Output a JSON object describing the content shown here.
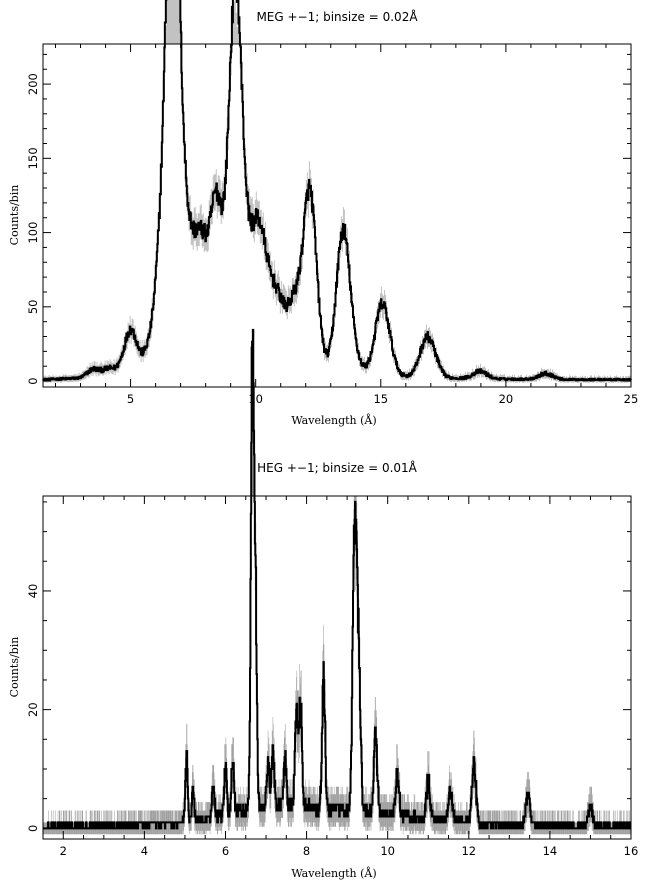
{
  "chart_data": [
    {
      "type": "line",
      "title": "MEG +−1; binsize = 0.02Å",
      "xlabel": "Wavelength (Å)",
      "ylabel": "Counts/bin",
      "xlim": [
        1.5,
        25
      ],
      "ylim": [
        -4,
        227
      ],
      "xticks": [
        5,
        10,
        15,
        20,
        25
      ],
      "yticks": [
        0,
        50,
        100,
        150,
        200
      ],
      "grid": false,
      "legend": "none",
      "line_color": "#000000",
      "errorbar_color": "#9a9a9a",
      "continuum": [
        [
          1.5,
          1
        ],
        [
          3,
          2
        ],
        [
          4,
          4
        ],
        [
          4.5,
          6
        ],
        [
          5.5,
          8
        ],
        [
          6,
          12
        ],
        [
          6.5,
          18
        ],
        [
          7,
          22
        ],
        [
          7.5,
          24
        ],
        [
          8,
          25
        ],
        [
          8.5,
          24
        ],
        [
          9,
          22
        ],
        [
          9.5,
          20
        ],
        [
          10,
          19
        ],
        [
          10.5,
          17
        ],
        [
          11,
          15
        ],
        [
          11.5,
          13
        ],
        [
          12,
          11
        ],
        [
          12.5,
          10
        ],
        [
          13,
          9
        ],
        [
          13.5,
          8
        ],
        [
          14,
          7
        ],
        [
          14.5,
          6
        ],
        [
          15,
          5
        ],
        [
          15.5,
          4
        ],
        [
          16,
          3
        ],
        [
          17,
          2
        ],
        [
          18,
          2
        ],
        [
          19,
          1.5
        ],
        [
          21,
          1.2
        ],
        [
          22,
          1
        ],
        [
          25,
          1
        ]
      ],
      "lines": [
        [
          3.5,
          5
        ],
        [
          4.1,
          4
        ],
        [
          4.8,
          6
        ],
        [
          5.04,
          24
        ],
        [
          5.7,
          10
        ],
        [
          6.18,
          55
        ],
        [
          6.4,
          20
        ],
        [
          6.65,
          207
        ],
        [
          6.74,
          147
        ],
        [
          7.04,
          30
        ],
        [
          7.17,
          36
        ],
        [
          7.47,
          38
        ],
        [
          7.85,
          59
        ],
        [
          8.42,
          96
        ],
        [
          9.0,
          44
        ],
        [
          9.17,
          130
        ],
        [
          9.3,
          90
        ],
        [
          9.7,
          36
        ],
        [
          10.0,
          38
        ],
        [
          10.24,
          50
        ],
        [
          10.65,
          30
        ],
        [
          11.0,
          26
        ],
        [
          11.55,
          38
        ],
        [
          12.13,
          97
        ],
        [
          12.3,
          24
        ],
        [
          13.45,
          53
        ],
        [
          13.55,
          40
        ],
        [
          13.9,
          8
        ],
        [
          15.01,
          37
        ],
        [
          15.26,
          14
        ],
        [
          16.78,
          19
        ],
        [
          17.05,
          12
        ],
        [
          18.97,
          5
        ],
        [
          21.6,
          4
        ]
      ]
    },
    {
      "type": "line",
      "title": "HEG +−1; binsize = 0.01Å",
      "xlabel": "Wavelength (Å)",
      "ylabel": "Counts/bin",
      "xlim": [
        1.5,
        16
      ],
      "ylim": [
        -1.8,
        56
      ],
      "xticks": [
        2,
        4,
        6,
        8,
        10,
        12,
        14,
        16
      ],
      "yticks": [
        0,
        20,
        40
      ],
      "grid": false,
      "legend": "none",
      "line_color": "#000000",
      "errorbar_color": "#9a9a9a",
      "continuum": [
        [
          1.5,
          0.3
        ],
        [
          3,
          0.5
        ],
        [
          4,
          0.7
        ],
        [
          5,
          1
        ],
        [
          5.5,
          1.5
        ],
        [
          6,
          2.2
        ],
        [
          6.5,
          3
        ],
        [
          7,
          3.5
        ],
        [
          7.5,
          3.6
        ],
        [
          8,
          3.5
        ],
        [
          8.5,
          3.2
        ],
        [
          9,
          3
        ],
        [
          9.5,
          2.7
        ],
        [
          10,
          2.4
        ],
        [
          10.5,
          2
        ],
        [
          11,
          1.6
        ],
        [
          11.5,
          1.3
        ],
        [
          12,
          1
        ],
        [
          12.5,
          0.8
        ],
        [
          13,
          0.6
        ],
        [
          14,
          0.5
        ],
        [
          15,
          0.4
        ],
        [
          16,
          0.3
        ]
      ],
      "lines": [
        [
          5.04,
          12
        ],
        [
          5.2,
          5
        ],
        [
          5.7,
          6
        ],
        [
          6.0,
          8
        ],
        [
          6.18,
          10
        ],
        [
          6.65,
          49
        ],
        [
          6.68,
          39
        ],
        [
          6.74,
          36
        ],
        [
          7.05,
          8
        ],
        [
          7.17,
          9
        ],
        [
          7.47,
          8
        ],
        [
          7.75,
          16
        ],
        [
          7.85,
          18
        ],
        [
          8.42,
          22
        ],
        [
          9.17,
          40
        ],
        [
          9.23,
          27
        ],
        [
          9.3,
          20
        ],
        [
          9.7,
          13
        ],
        [
          10.24,
          7
        ],
        [
          11.0,
          6
        ],
        [
          11.55,
          5
        ],
        [
          12.13,
          10
        ],
        [
          13.45,
          5.5
        ],
        [
          15.0,
          3
        ]
      ]
    }
  ]
}
